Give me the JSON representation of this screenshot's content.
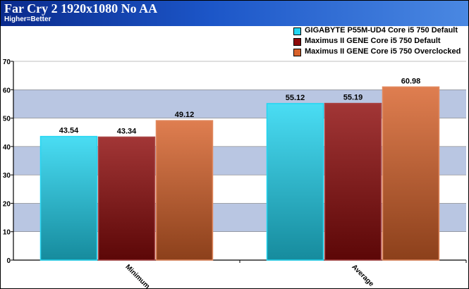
{
  "header": {
    "title": "Far Cry 2 1920x1080 No AA",
    "subtitle": "Higher=Better"
  },
  "colors": {
    "header_gradient": [
      "#0a2a8c",
      "#4a88e2"
    ],
    "band": "#b9c6e2",
    "series": [
      "#22d6f2",
      "#8e0a0a",
      "#d8622a"
    ]
  },
  "chart_data": {
    "type": "bar",
    "title": "Far Cry 2 1920x1080 No AA",
    "subtitle": "Higher=Better",
    "categories": [
      "Minimum",
      "Average"
    ],
    "series": [
      {
        "name": "GIGABYTE P55M-UD4 Core i5 750 Default",
        "values": [
          43.54,
          55.12
        ],
        "color": "#22d6f2"
      },
      {
        "name": "Maximus II GENE Core i5 750 Default",
        "values": [
          43.34,
          55.19
        ],
        "color": "#8e0a0a"
      },
      {
        "name": "Maximus II GENE Core i5 750 Overclocked",
        "values": [
          49.12,
          60.98
        ],
        "color": "#d8622a"
      }
    ],
    "data_labels": [
      [
        "43.54",
        "55.12"
      ],
      [
        "43.34",
        "55.19"
      ],
      [
        "49.12",
        "60.98"
      ]
    ],
    "yticks": [
      "0",
      "10",
      "20",
      "30",
      "40",
      "50",
      "60",
      "70"
    ],
    "ylim": [
      0,
      70
    ],
    "xlabel": "",
    "ylabel": "",
    "grid": "alternating horizontal bands",
    "legend_position": "top-right"
  }
}
